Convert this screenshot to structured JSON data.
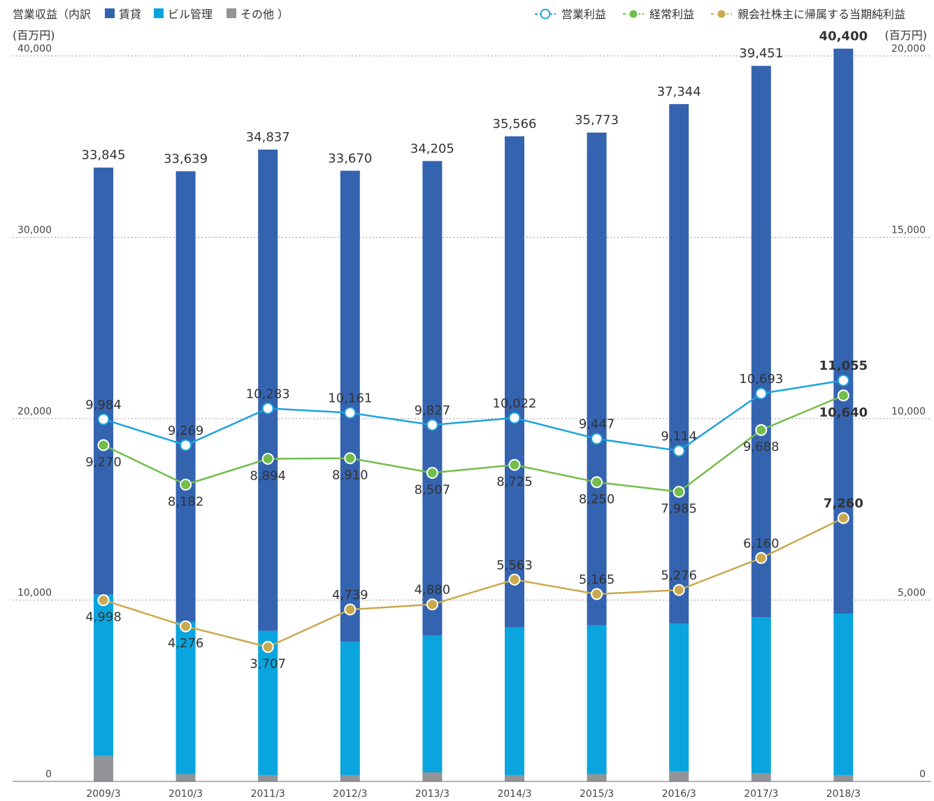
{
  "header": {
    "left_title": "営業収益（内訳",
    "left_unit": "(百万円)",
    "right_unit": "(百万円)",
    "legend_close": "）"
  },
  "chart_data": {
    "type": "bar",
    "categories": [
      "2009/3",
      "2010/3",
      "2011/3",
      "2012/3",
      "2013/3",
      "2014/3",
      "2015/3",
      "2016/3",
      "2017/3",
      "2018/3"
    ],
    "bar_totals": [
      33845,
      33639,
      34837,
      33670,
      34205,
      35566,
      35773,
      37344,
      39451,
      40400
    ],
    "bar_series": [
      {
        "name": "その他",
        "color": "#929497",
        "values": [
          1400,
          400,
          350,
          350,
          500,
          350,
          400,
          550,
          450,
          350
        ]
      },
      {
        "name": "ビル管理",
        "color": "#0aa5de",
        "values": [
          8900,
          8400,
          7950,
          7350,
          7550,
          8150,
          8200,
          8150,
          8600,
          8900
        ]
      },
      {
        "name": "賃貸",
        "color": "#3463b0",
        "values": [
          23545,
          24839,
          26537,
          25970,
          26155,
          27066,
          27173,
          28644,
          30401,
          31150
        ]
      }
    ],
    "line_series": [
      {
        "name": "営業利益",
        "color": "#1ba3dc",
        "fill": "#ffffff",
        "values": [
          9984,
          9269,
          10283,
          10161,
          9827,
          10022,
          9447,
          9114,
          10693,
          11055
        ]
      },
      {
        "name": "経常利益",
        "color": "#72bd4b",
        "fill": "#72bd4b",
        "values": [
          9270,
          8182,
          8894,
          8910,
          8507,
          8725,
          8250,
          7985,
          9688,
          10640
        ]
      },
      {
        "name": "親会社株主に帰属する当期純利益",
        "color": "#c9a94e",
        "fill": "#c9a94e",
        "values": [
          4998,
          4276,
          3707,
          4739,
          4880,
          5563,
          5165,
          5276,
          6160,
          7260
        ]
      }
    ],
    "y_left": {
      "min": 0,
      "max": 40000,
      "ticks": [
        "0",
        "10,000",
        "20,000",
        "30,000",
        "40,000"
      ]
    },
    "y_right": {
      "min": 0,
      "max": 20000,
      "ticks": [
        "0",
        "5,000",
        "10,000",
        "15,000",
        "20,000"
      ]
    },
    "bar_labels": [
      "33,845",
      "33,639",
      "34,837",
      "33,670",
      "34,205",
      "35,566",
      "35,773",
      "37,344",
      "39,451",
      "40,400"
    ],
    "line_labels": [
      [
        "9,984",
        "9,269",
        "10,283",
        "10,161",
        "9,827",
        "10,022",
        "9,447",
        "9,114",
        "10,693",
        "11,055"
      ],
      [
        "9,270",
        "8,182",
        "8,894",
        "8,910",
        "8,507",
        "8,725",
        "8,250",
        "7,985",
        "9,688",
        "10,640"
      ],
      [
        "4,998",
        "4,276",
        "3,707",
        "4,739",
        "4,880",
        "5,563",
        "5,165",
        "5,276",
        "6,160",
        "7,260"
      ]
    ],
    "grid": "dotted",
    "legend": "top"
  }
}
